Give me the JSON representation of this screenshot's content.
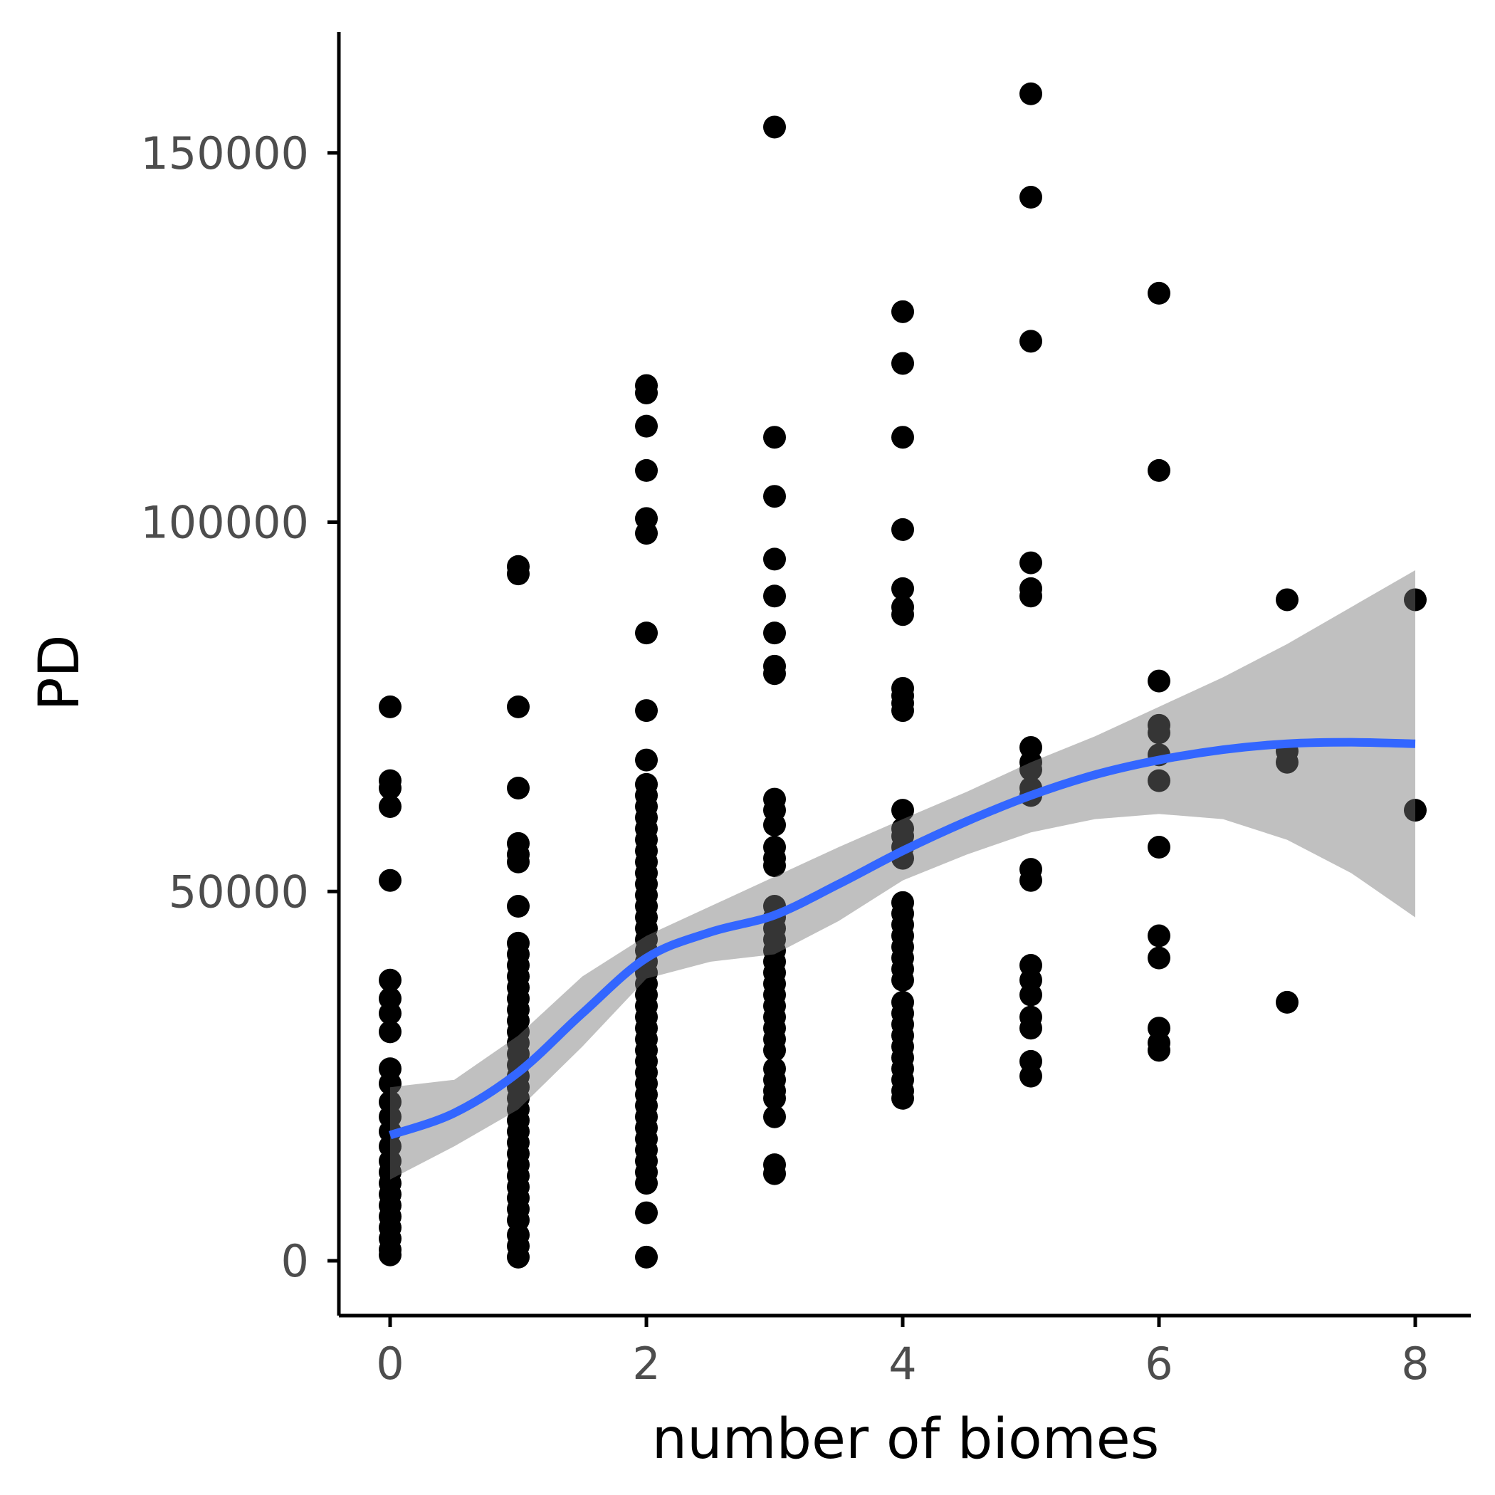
{
  "chart_data": {
    "type": "scatter",
    "title": "",
    "xlabel": "number of biomes",
    "ylabel": "PD",
    "xlim": [
      -0.4,
      8.4
    ],
    "ylim": [
      -7500,
      166000
    ],
    "x_ticks": [
      0,
      2,
      4,
      6,
      8
    ],
    "x_tick_labels": [
      "0",
      "2",
      "4",
      "6",
      "8"
    ],
    "y_ticks": [
      0,
      50000,
      100000,
      150000
    ],
    "y_tick_labels": [
      "0",
      "50000",
      "100000",
      "150000"
    ],
    "grid": false,
    "legend": "none",
    "colors": {
      "points": "#000000",
      "smooth_line": "#3366FF",
      "confidence_band": "#999999",
      "axis": "#000000",
      "tick_label": "#4D4D4D",
      "background": "#FFFFFF"
    },
    "points": [
      {
        "x": 0,
        "y": 75000
      },
      {
        "x": 0,
        "y": 65000
      },
      {
        "x": 0,
        "y": 64000
      },
      {
        "x": 0,
        "y": 61500
      },
      {
        "x": 0,
        "y": 51500
      },
      {
        "x": 0,
        "y": 38000
      },
      {
        "x": 0,
        "y": 35500
      },
      {
        "x": 0,
        "y": 33500
      },
      {
        "x": 0,
        "y": 31000
      },
      {
        "x": 0,
        "y": 26000
      },
      {
        "x": 0,
        "y": 24000
      },
      {
        "x": 0,
        "y": 21500
      },
      {
        "x": 0,
        "y": 19500
      },
      {
        "x": 0,
        "y": 17500
      },
      {
        "x": 0,
        "y": 15500
      },
      {
        "x": 0,
        "y": 13500
      },
      {
        "x": 0,
        "y": 12000
      },
      {
        "x": 0,
        "y": 10500
      },
      {
        "x": 0,
        "y": 9000
      },
      {
        "x": 0,
        "y": 7500
      },
      {
        "x": 0,
        "y": 6000
      },
      {
        "x": 0,
        "y": 4500
      },
      {
        "x": 0,
        "y": 3000
      },
      {
        "x": 0,
        "y": 1500
      },
      {
        "x": 0,
        "y": 800
      },
      {
        "x": 1,
        "y": 94000
      },
      {
        "x": 1,
        "y": 93000
      },
      {
        "x": 1,
        "y": 75000
      },
      {
        "x": 1,
        "y": 64000
      },
      {
        "x": 1,
        "y": 56500
      },
      {
        "x": 1,
        "y": 55000
      },
      {
        "x": 1,
        "y": 54000
      },
      {
        "x": 1,
        "y": 48000
      },
      {
        "x": 1,
        "y": 43000
      },
      {
        "x": 1,
        "y": 41500
      },
      {
        "x": 1,
        "y": 40000
      },
      {
        "x": 1,
        "y": 38500
      },
      {
        "x": 1,
        "y": 37000
      },
      {
        "x": 1,
        "y": 35500
      },
      {
        "x": 1,
        "y": 34000
      },
      {
        "x": 1,
        "y": 32500
      },
      {
        "x": 1,
        "y": 31000
      },
      {
        "x": 1,
        "y": 29500
      },
      {
        "x": 1,
        "y": 28000
      },
      {
        "x": 1,
        "y": 26500
      },
      {
        "x": 1,
        "y": 25000
      },
      {
        "x": 1,
        "y": 23500
      },
      {
        "x": 1,
        "y": 22000
      },
      {
        "x": 1,
        "y": 20500
      },
      {
        "x": 1,
        "y": 19000
      },
      {
        "x": 1,
        "y": 17500
      },
      {
        "x": 1,
        "y": 16000
      },
      {
        "x": 1,
        "y": 14500
      },
      {
        "x": 1,
        "y": 13000
      },
      {
        "x": 1,
        "y": 11500
      },
      {
        "x": 1,
        "y": 10000
      },
      {
        "x": 1,
        "y": 8500
      },
      {
        "x": 1,
        "y": 7000
      },
      {
        "x": 1,
        "y": 5500
      },
      {
        "x": 1,
        "y": 3500
      },
      {
        "x": 1,
        "y": 2000
      },
      {
        "x": 1,
        "y": 500
      },
      {
        "x": 2,
        "y": 118500
      },
      {
        "x": 2,
        "y": 117500
      },
      {
        "x": 2,
        "y": 113000
      },
      {
        "x": 2,
        "y": 107000
      },
      {
        "x": 2,
        "y": 100500
      },
      {
        "x": 2,
        "y": 98500
      },
      {
        "x": 2,
        "y": 85000
      },
      {
        "x": 2,
        "y": 74500
      },
      {
        "x": 2,
        "y": 67800
      },
      {
        "x": 2,
        "y": 64500
      },
      {
        "x": 2,
        "y": 63000
      },
      {
        "x": 2,
        "y": 61500
      },
      {
        "x": 2,
        "y": 60000
      },
      {
        "x": 2,
        "y": 58500
      },
      {
        "x": 2,
        "y": 57000
      },
      {
        "x": 2,
        "y": 55500
      },
      {
        "x": 2,
        "y": 54000
      },
      {
        "x": 2,
        "y": 52500
      },
      {
        "x": 2,
        "y": 51000
      },
      {
        "x": 2,
        "y": 49500
      },
      {
        "x": 2,
        "y": 48000
      },
      {
        "x": 2,
        "y": 46500
      },
      {
        "x": 2,
        "y": 45000
      },
      {
        "x": 2,
        "y": 43500
      },
      {
        "x": 2,
        "y": 42000
      },
      {
        "x": 2,
        "y": 40500
      },
      {
        "x": 2,
        "y": 39000
      },
      {
        "x": 2,
        "y": 37500
      },
      {
        "x": 2,
        "y": 36000
      },
      {
        "x": 2,
        "y": 34500
      },
      {
        "x": 2,
        "y": 33000
      },
      {
        "x": 2,
        "y": 31500
      },
      {
        "x": 2,
        "y": 30000
      },
      {
        "x": 2,
        "y": 28500
      },
      {
        "x": 2,
        "y": 27000
      },
      {
        "x": 2,
        "y": 25500
      },
      {
        "x": 2,
        "y": 24000
      },
      {
        "x": 2,
        "y": 22500
      },
      {
        "x": 2,
        "y": 21000
      },
      {
        "x": 2,
        "y": 19500
      },
      {
        "x": 2,
        "y": 18000
      },
      {
        "x": 2,
        "y": 16500
      },
      {
        "x": 2,
        "y": 15000
      },
      {
        "x": 2,
        "y": 13500
      },
      {
        "x": 2,
        "y": 12000
      },
      {
        "x": 2,
        "y": 10500
      },
      {
        "x": 2,
        "y": 6500
      },
      {
        "x": 2,
        "y": 500
      },
      {
        "x": 3,
        "y": 153500
      },
      {
        "x": 3,
        "y": 111500
      },
      {
        "x": 3,
        "y": 103500
      },
      {
        "x": 3,
        "y": 95000
      },
      {
        "x": 3,
        "y": 90000
      },
      {
        "x": 3,
        "y": 85000
      },
      {
        "x": 3,
        "y": 80500
      },
      {
        "x": 3,
        "y": 79500
      },
      {
        "x": 3,
        "y": 62500
      },
      {
        "x": 3,
        "y": 61000
      },
      {
        "x": 3,
        "y": 59000
      },
      {
        "x": 3,
        "y": 56000
      },
      {
        "x": 3,
        "y": 54500
      },
      {
        "x": 3,
        "y": 53500
      },
      {
        "x": 3,
        "y": 48000
      },
      {
        "x": 3,
        "y": 46500
      },
      {
        "x": 3,
        "y": 45000
      },
      {
        "x": 3,
        "y": 43500
      },
      {
        "x": 3,
        "y": 42000
      },
      {
        "x": 3,
        "y": 40500
      },
      {
        "x": 3,
        "y": 39000
      },
      {
        "x": 3,
        "y": 37500
      },
      {
        "x": 3,
        "y": 36000
      },
      {
        "x": 3,
        "y": 34500
      },
      {
        "x": 3,
        "y": 33000
      },
      {
        "x": 3,
        "y": 31500
      },
      {
        "x": 3,
        "y": 30000
      },
      {
        "x": 3,
        "y": 28500
      },
      {
        "x": 3,
        "y": 26000
      },
      {
        "x": 3,
        "y": 24500
      },
      {
        "x": 3,
        "y": 23000
      },
      {
        "x": 3,
        "y": 22000
      },
      {
        "x": 3,
        "y": 19500
      },
      {
        "x": 3,
        "y": 13000
      },
      {
        "x": 3,
        "y": 11800
      },
      {
        "x": 4,
        "y": 128500
      },
      {
        "x": 4,
        "y": 121500
      },
      {
        "x": 4,
        "y": 111500
      },
      {
        "x": 4,
        "y": 99000
      },
      {
        "x": 4,
        "y": 91000
      },
      {
        "x": 4,
        "y": 88500
      },
      {
        "x": 4,
        "y": 87500
      },
      {
        "x": 4,
        "y": 77500
      },
      {
        "x": 4,
        "y": 76500
      },
      {
        "x": 4,
        "y": 75500
      },
      {
        "x": 4,
        "y": 74500
      },
      {
        "x": 4,
        "y": 61000
      },
      {
        "x": 4,
        "y": 58500
      },
      {
        "x": 4,
        "y": 57500
      },
      {
        "x": 4,
        "y": 56000
      },
      {
        "x": 4,
        "y": 54500
      },
      {
        "x": 4,
        "y": 48500
      },
      {
        "x": 4,
        "y": 47000
      },
      {
        "x": 4,
        "y": 45500
      },
      {
        "x": 4,
        "y": 44000
      },
      {
        "x": 4,
        "y": 42500
      },
      {
        "x": 4,
        "y": 41000
      },
      {
        "x": 4,
        "y": 39500
      },
      {
        "x": 4,
        "y": 38000
      },
      {
        "x": 4,
        "y": 35000
      },
      {
        "x": 4,
        "y": 33500
      },
      {
        "x": 4,
        "y": 32000
      },
      {
        "x": 4,
        "y": 30500
      },
      {
        "x": 4,
        "y": 29000
      },
      {
        "x": 4,
        "y": 27500
      },
      {
        "x": 4,
        "y": 26000
      },
      {
        "x": 4,
        "y": 24500
      },
      {
        "x": 4,
        "y": 23000
      },
      {
        "x": 4,
        "y": 22000
      },
      {
        "x": 5,
        "y": 158000
      },
      {
        "x": 5,
        "y": 144000
      },
      {
        "x": 5,
        "y": 124500
      },
      {
        "x": 5,
        "y": 94500
      },
      {
        "x": 5,
        "y": 91000
      },
      {
        "x": 5,
        "y": 90000
      },
      {
        "x": 5,
        "y": 69500
      },
      {
        "x": 5,
        "y": 67500
      },
      {
        "x": 5,
        "y": 66500
      },
      {
        "x": 5,
        "y": 64000
      },
      {
        "x": 5,
        "y": 63000
      },
      {
        "x": 5,
        "y": 53000
      },
      {
        "x": 5,
        "y": 51500
      },
      {
        "x": 5,
        "y": 40000
      },
      {
        "x": 5,
        "y": 38000
      },
      {
        "x": 5,
        "y": 36000
      },
      {
        "x": 5,
        "y": 33000
      },
      {
        "x": 5,
        "y": 31500
      },
      {
        "x": 5,
        "y": 27000
      },
      {
        "x": 5,
        "y": 25000
      },
      {
        "x": 6,
        "y": 131000
      },
      {
        "x": 6,
        "y": 107000
      },
      {
        "x": 6,
        "y": 78500
      },
      {
        "x": 6,
        "y": 72500
      },
      {
        "x": 6,
        "y": 71500
      },
      {
        "x": 6,
        "y": 68500
      },
      {
        "x": 6,
        "y": 65000
      },
      {
        "x": 6,
        "y": 56000
      },
      {
        "x": 6,
        "y": 44000
      },
      {
        "x": 6,
        "y": 41000
      },
      {
        "x": 6,
        "y": 31500
      },
      {
        "x": 6,
        "y": 29500
      },
      {
        "x": 6,
        "y": 28500
      },
      {
        "x": 7,
        "y": 89500
      },
      {
        "x": 7,
        "y": 69000
      },
      {
        "x": 7,
        "y": 67500
      },
      {
        "x": 7,
        "y": 35000
      },
      {
        "x": 8,
        "y": 89500
      },
      {
        "x": 8,
        "y": 61000
      }
    ],
    "smooth": {
      "method": "loess",
      "x": [
        0,
        0.5,
        1,
        1.5,
        2,
        2.5,
        3,
        3.5,
        4,
        4.5,
        5,
        5.5,
        6,
        6.5,
        7,
        7.5,
        8
      ],
      "fit": [
        17000,
        20000,
        25500,
        33500,
        41000,
        44500,
        46800,
        51000,
        55500,
        59500,
        63000,
        65800,
        67800,
        69200,
        70000,
        70200,
        70000
      ],
      "lower": [
        11000,
        15500,
        20500,
        29000,
        38200,
        40500,
        41500,
        46000,
        51500,
        55000,
        58000,
        59800,
        60500,
        59800,
        57000,
        52500,
        46500
      ],
      "upper": [
        23500,
        24500,
        30500,
        38500,
        44000,
        48000,
        52000,
        56000,
        59800,
        63500,
        67500,
        71000,
        75000,
        79000,
        83500,
        88500,
        93500
      ]
    }
  }
}
